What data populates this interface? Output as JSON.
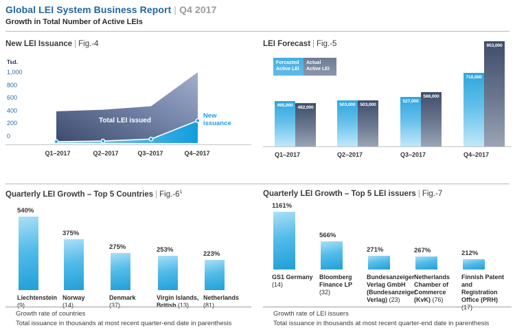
{
  "header": {
    "title": "Global LEI System Business Report",
    "separator": "|",
    "period": "Q4 2017",
    "subtitle": "Growth in Total Number of Active LEIs"
  },
  "colors": {
    "header_blue": "#2265a0",
    "accent_blue": "#29a7e0",
    "dark_navy": "#41506e",
    "steel_blue": "#9aa6c2",
    "axis_tick_blue": "#2a6da6",
    "muted_gray": "#9b9b9b"
  },
  "chart_data": [
    {
      "id": "fig4",
      "type": "area",
      "title": "New LEI Issuance",
      "separator": "|",
      "fig_label": "Fig.-4",
      "y_axis_unit": "Tsd.",
      "y_ticks": [
        "1,000",
        "800",
        "600",
        "400",
        "200",
        "0"
      ],
      "ylim": [
        0,
        1000
      ],
      "grid": false,
      "categories": [
        "Q1–2017",
        "Q2–2017",
        "Q3–2017",
        "Q4–2017"
      ],
      "series": [
        {
          "name": "Total LEI issued",
          "values_tsd_est": [
            390,
            415,
            470,
            1005
          ]
        },
        {
          "name": "New issuance",
          "values_tsd_est": [
            0,
            10,
            40,
            330
          ]
        }
      ],
      "annotations": {
        "total": "Total LEI issued",
        "new": "New issuance"
      }
    },
    {
      "id": "fig5",
      "type": "bar",
      "title": "LEI Forecast",
      "separator": "|",
      "fig_label": "Fig.-5",
      "grid": false,
      "legend_position": "top-left",
      "categories": [
        "Q1–2017",
        "Q2–2017",
        "Q3–2017",
        "Q4–2017"
      ],
      "series": [
        {
          "name": "Forcasted Active LEI",
          "name_lines": [
            "Forcasted",
            "Active LEI"
          ],
          "values": [
            495000,
            503000,
            527000,
            710000
          ],
          "labels": [
            "495,000",
            "503,000",
            "527,000",
            "710,000"
          ]
        },
        {
          "name": "Actual Active LEI",
          "name_lines": [
            "Actual",
            "Active  LEI"
          ],
          "values": [
            482000,
            503000,
            566000,
            953000
          ],
          "labels": [
            "482,000",
            "503,000",
            "566,000",
            "953,000"
          ]
        }
      ]
    },
    {
      "id": "fig6",
      "type": "bar",
      "title": "Quarterly LEI Growth – Top 5 Countries",
      "separator": "|",
      "fig_label": "Fig.-6",
      "fig_superscript": "1",
      "grid": false,
      "values": [
        540,
        375,
        275,
        253,
        223
      ],
      "labels": [
        "540%",
        "375%",
        "275%",
        "253%",
        "223%"
      ],
      "categories": [
        {
          "name_lines": [
            "Liechtenstein"
          ],
          "count": "(9)",
          "count_inline": false
        },
        {
          "name_lines": [
            "Norway"
          ],
          "count": "(14)",
          "count_inline": false
        },
        {
          "name_lines": [
            "Denmark"
          ],
          "count": "(37)",
          "count_inline": false
        },
        {
          "name_lines": [
            "Virgin Islands,",
            "British"
          ],
          "count": "(13)",
          "count_inline": true
        },
        {
          "name_lines": [
            "Netherlands"
          ],
          "count": "(81)",
          "count_inline": false
        }
      ],
      "footnotes": [
        "Growth rate of countries",
        "Total issuance in thousands at most recent quarter-end date in parenthesis"
      ]
    },
    {
      "id": "fig7",
      "type": "bar",
      "title": "Quarterly LEI Growth – Top 5 LEI issuers",
      "separator": "|",
      "fig_label": "Fig.-7",
      "grid": false,
      "values": [
        1161,
        566,
        271,
        267,
        212
      ],
      "labels": [
        "1161%",
        "566%",
        "271%",
        "267%",
        "212%"
      ],
      "categories": [
        {
          "name_lines": [
            "GS1 Germany"
          ],
          "count": "(14)",
          "count_inline": false
        },
        {
          "name_lines": [
            "Bloomberg",
            "Finance LP"
          ],
          "count": "(32)",
          "count_inline": false
        },
        {
          "name_lines": [
            "Bundesanzeiger",
            "Verlag GmbH",
            "(Bundesanzeiger",
            "Verlag)"
          ],
          "count": "(23)",
          "count_inline": true
        },
        {
          "name_lines": [
            "Netherlands",
            "Chamber of",
            "Commerce",
            "(KvK)"
          ],
          "count": "(76)",
          "count_inline": true
        },
        {
          "name_lines": [
            "Finnish Patent",
            "and Registration",
            "Office (PRH)"
          ],
          "count": "(17)",
          "count_inline": false
        }
      ],
      "footnotes": [
        "Growth rate of LEI issuers",
        "Total issuance in thousands at most recent quarter-end date in parenthesis"
      ]
    }
  ]
}
